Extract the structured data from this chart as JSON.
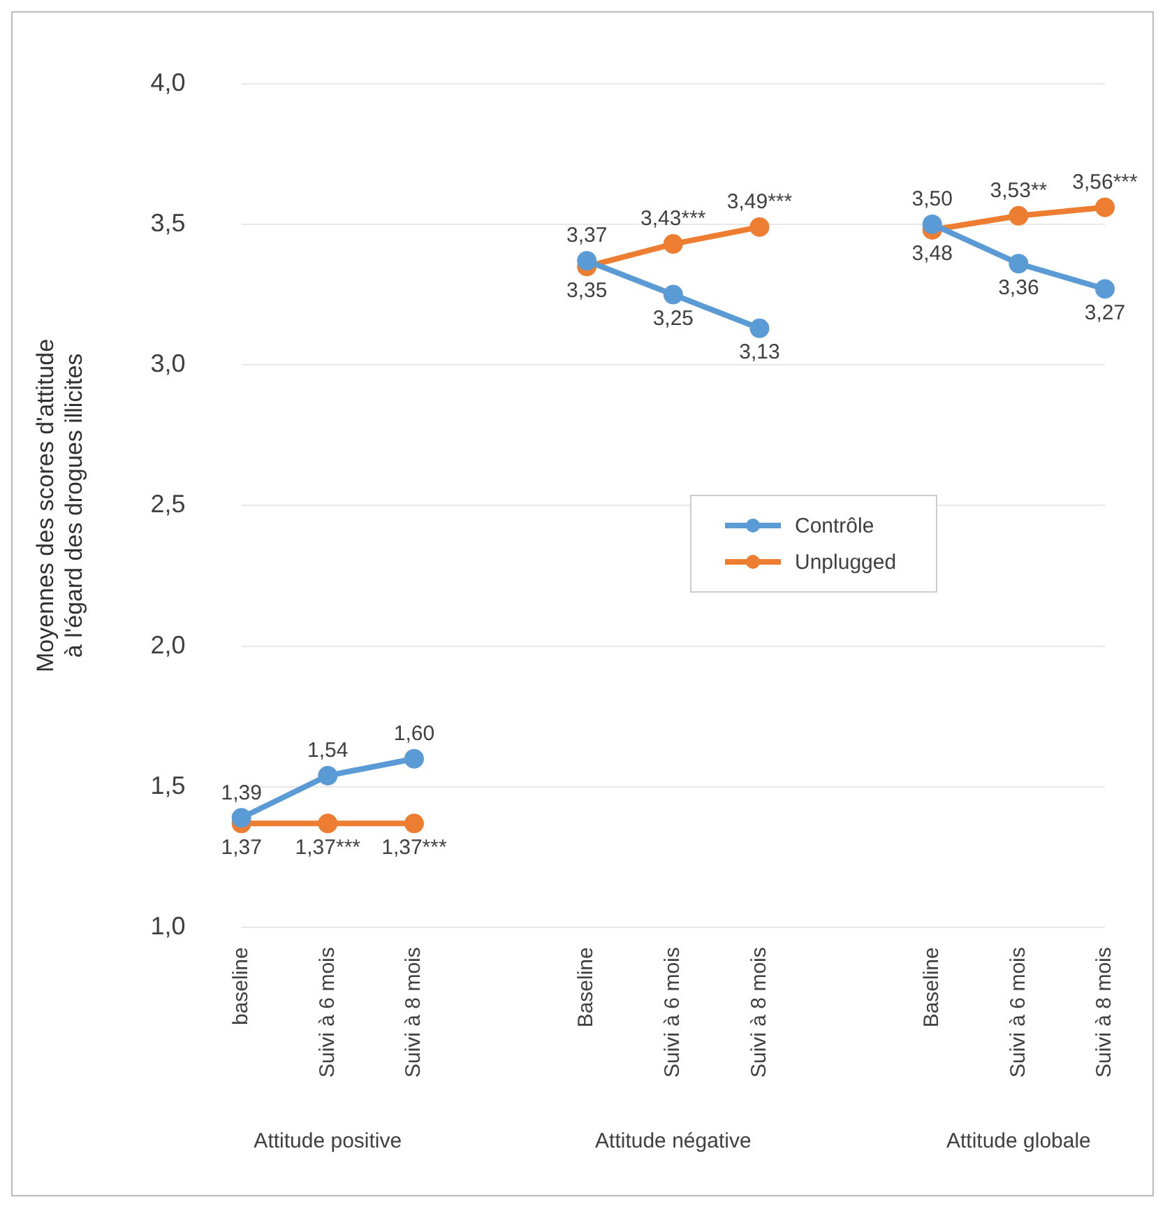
{
  "chart_data": {
    "type": "line",
    "ylabel": "Moyennes des scores d'attitude à l'égard des drogues illicites",
    "categories": [
      "baseline",
      "Suivi à 6 mois",
      "Suivi à 8 mois",
      null,
      "Baseline",
      "Suivi à 6 mois",
      "Suivi à 8 mois",
      null,
      "Baseline",
      "Suivi à 6 mois",
      "Suivi à 8 mois"
    ],
    "series": [
      {
        "name": "Contrôle",
        "color": "#5b9bd5",
        "values": [
          1.39,
          1.54,
          1.6,
          null,
          3.37,
          3.25,
          3.13,
          null,
          3.5,
          3.36,
          3.27
        ],
        "value_labels": [
          "1,39",
          "1,54",
          "1,60",
          null,
          "3,37",
          "3,25",
          "3,13",
          null,
          "3,50",
          "3,36",
          "3,27"
        ]
      },
      {
        "name": "Unplugged",
        "color": "#ed7d31",
        "values": [
          1.37,
          1.37,
          1.37,
          null,
          3.35,
          3.43,
          3.49,
          null,
          3.48,
          3.53,
          3.56
        ],
        "value_labels": [
          "1,37",
          "1,37***",
          "1,37***",
          null,
          "3,35",
          "3,43***",
          "3,49***",
          null,
          "3,48",
          "3,53**",
          "3,56***"
        ]
      }
    ],
    "annotations": [
      "Attitude positive",
      "Attitude négative",
      "Attitude globale"
    ],
    "ylim": [
      1,
      4
    ],
    "yticks": [
      {
        "value": 1,
        "label": "1,0"
      },
      {
        "value": 1.5,
        "label": "1,5"
      },
      {
        "value": 2,
        "label": "2,0"
      },
      {
        "value": 2.5,
        "label": "2,5"
      },
      {
        "value": 3,
        "label": "3,0"
      },
      {
        "value": 3.5,
        "label": "3,5"
      },
      {
        "value": 4,
        "label": "4,0"
      }
    ],
    "grid": "y",
    "legend": "right",
    "marker": "circle",
    "line_style": "solid"
  }
}
